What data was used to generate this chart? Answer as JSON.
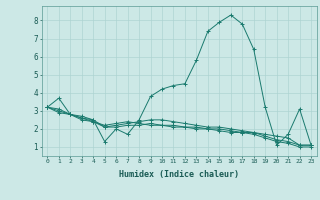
{
  "xlabel": "Humidex (Indice chaleur)",
  "ylabel": "",
  "background_color": "#cce8e6",
  "grid_color": "#aed4d2",
  "line_color": "#1a7a6e",
  "xlim": [
    -0.5,
    23.5
  ],
  "ylim": [
    0.5,
    8.8
  ],
  "xtick_labels": [
    "0",
    "1",
    "2",
    "3",
    "4",
    "5",
    "6",
    "7",
    "8",
    "9",
    "10",
    "11",
    "12",
    "13",
    "14",
    "15",
    "16",
    "17",
    "18",
    "19",
    "20",
    "21",
    "22",
    "23"
  ],
  "ytick_values": [
    1,
    2,
    3,
    4,
    5,
    6,
    7,
    8
  ],
  "series": [
    [
      3.2,
      3.7,
      2.8,
      2.6,
      2.5,
      1.3,
      2.0,
      1.7,
      2.5,
      3.8,
      4.2,
      4.4,
      4.5,
      5.8,
      7.4,
      7.9,
      8.3,
      7.8,
      6.4,
      3.2,
      1.1,
      1.7,
      3.1,
      1.1
    ],
    [
      3.2,
      3.1,
      2.8,
      2.7,
      2.5,
      2.1,
      2.2,
      2.3,
      2.4,
      2.5,
      2.5,
      2.4,
      2.3,
      2.2,
      2.1,
      2.1,
      2.0,
      1.9,
      1.8,
      1.7,
      1.6,
      1.5,
      1.1,
      1.1
    ],
    [
      3.2,
      3.0,
      2.8,
      2.6,
      2.4,
      2.2,
      2.3,
      2.4,
      2.3,
      2.2,
      2.2,
      2.1,
      2.1,
      2.1,
      2.0,
      2.0,
      1.9,
      1.8,
      1.8,
      1.6,
      1.4,
      1.3,
      1.1,
      1.1
    ],
    [
      3.2,
      2.9,
      2.8,
      2.5,
      2.4,
      2.1,
      2.1,
      2.2,
      2.2,
      2.3,
      2.2,
      2.2,
      2.1,
      2.0,
      2.0,
      1.9,
      1.8,
      1.8,
      1.7,
      1.5,
      1.3,
      1.2,
      1.0,
      1.0
    ]
  ]
}
